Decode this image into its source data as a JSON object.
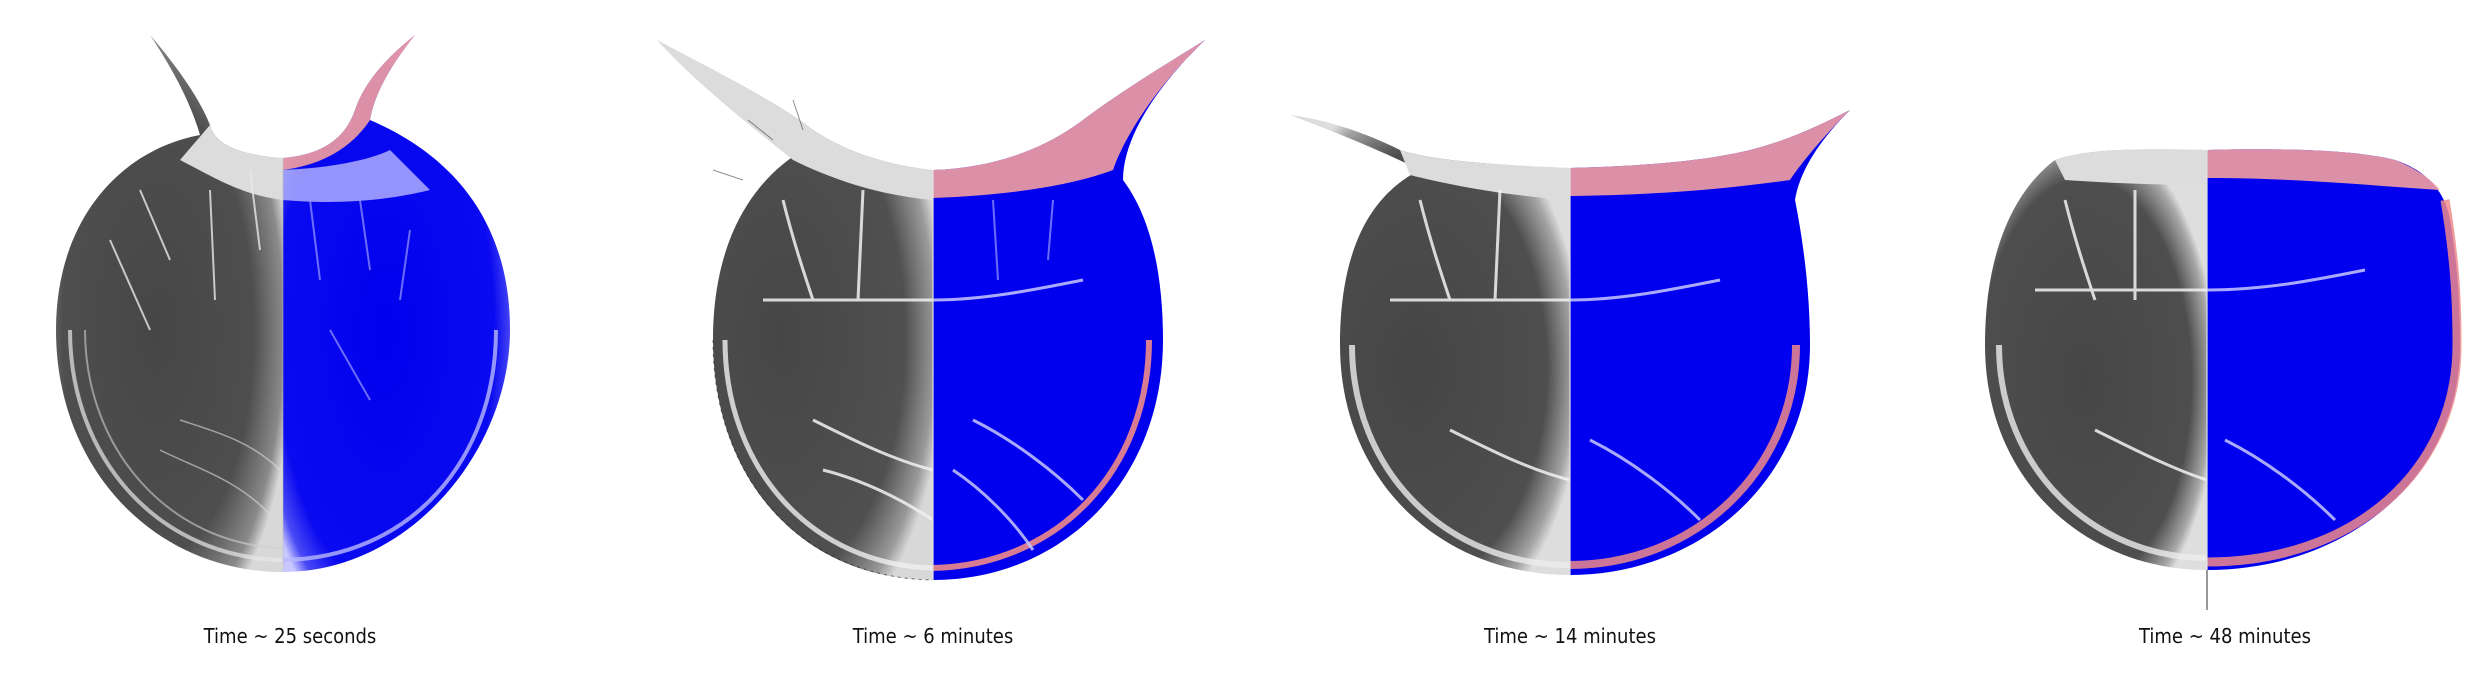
{
  "figure": {
    "panels": [
      {
        "caption": "Time ~ 25 seconds"
      },
      {
        "caption": "Time ~ 6 minutes"
      },
      {
        "caption": "Time ~ 14 minutes"
      },
      {
        "caption": "Time ~ 48 minutes"
      }
    ],
    "colors": {
      "background": "#ffffff",
      "left_half_dark": "#4a4a4a",
      "left_half_light": "#d9d9d9",
      "right_half_fill": "#0000ee",
      "right_half_edge": "#f08080",
      "crack_lines": "#f2f2f2",
      "caption_text": "#111111"
    }
  }
}
